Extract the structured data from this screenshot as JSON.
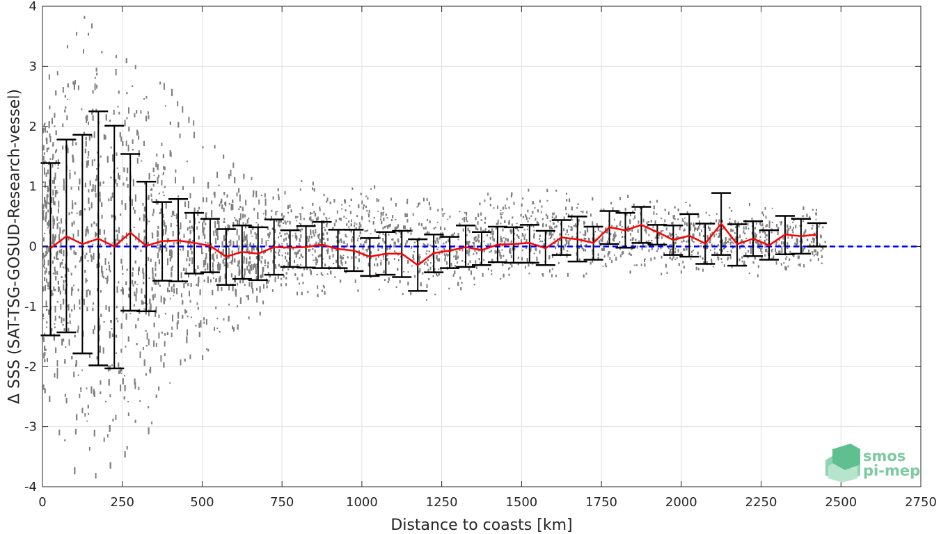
{
  "chart_data": {
    "type": "scatter",
    "xlabel": "Distance to coasts [km]",
    "ylabel": "Δ SSS (SAT-TSG-GOSUD-Research-vessel)",
    "xlim": [
      0,
      2750
    ],
    "ylim": [
      -4,
      4
    ],
    "xticks": [
      0,
      250,
      500,
      750,
      1000,
      1250,
      1500,
      1750,
      2000,
      2250,
      2500,
      2750
    ],
    "yticks": [
      -4,
      -3,
      -2,
      -1,
      0,
      1,
      2,
      3,
      4
    ],
    "grid": true,
    "reference_line": {
      "y": 0,
      "style": "dashed",
      "color": "#0000ff"
    },
    "colors": {
      "scatter": "#808080",
      "mean": "#ff0000",
      "errorbar": "#000000",
      "reference": "#0000ff"
    },
    "binned": {
      "x": [
        25,
        75,
        125,
        175,
        225,
        275,
        325,
        375,
        425,
        475,
        525,
        575,
        625,
        675,
        725,
        775,
        825,
        875,
        925,
        975,
        1025,
        1075,
        1125,
        1175,
        1225,
        1275,
        1325,
        1375,
        1425,
        1475,
        1525,
        1575,
        1625,
        1675,
        1725,
        1775,
        1825,
        1875,
        1925,
        1975,
        2025,
        2075,
        2125,
        2175,
        2225,
        2275,
        2325,
        2375,
        2425
      ],
      "mean": [
        -0.03,
        0.17,
        0.04,
        0.13,
        0.0,
        0.23,
        0.01,
        0.09,
        0.1,
        0.06,
        0.01,
        -0.17,
        -0.09,
        -0.12,
        -0.01,
        -0.02,
        -0.01,
        0.03,
        -0.04,
        -0.07,
        -0.17,
        -0.12,
        -0.12,
        -0.31,
        -0.11,
        -0.07,
        -0.01,
        -0.06,
        0.03,
        0.04,
        0.06,
        -0.03,
        0.15,
        0.12,
        0.06,
        0.32,
        0.27,
        0.36,
        0.24,
        0.11,
        0.18,
        0.05,
        0.38,
        0.04,
        0.13,
        0.02,
        0.2,
        0.17,
        0.2
      ],
      "lower": [
        -1.48,
        -1.43,
        -1.78,
        -1.98,
        -2.03,
        -1.07,
        -1.08,
        -0.57,
        -0.58,
        -0.45,
        -0.43,
        -0.64,
        -0.54,
        -0.56,
        -0.47,
        -0.34,
        -0.35,
        -0.36,
        -0.36,
        -0.41,
        -0.49,
        -0.47,
        -0.51,
        -0.74,
        -0.43,
        -0.36,
        -0.34,
        -0.31,
        -0.26,
        -0.27,
        -0.27,
        -0.31,
        -0.14,
        -0.25,
        -0.22,
        0.04,
        -0.02,
        0.06,
        0.03,
        -0.14,
        -0.17,
        -0.29,
        -0.14,
        -0.32,
        -0.16,
        -0.22,
        -0.13,
        -0.12,
        0.0
      ],
      "upper": [
        1.39,
        1.78,
        1.86,
        2.25,
        2.01,
        1.54,
        1.08,
        0.74,
        0.79,
        0.56,
        0.46,
        0.29,
        0.35,
        0.32,
        0.45,
        0.27,
        0.34,
        0.41,
        0.28,
        0.28,
        0.14,
        0.24,
        0.26,
        0.12,
        0.2,
        0.16,
        0.35,
        0.24,
        0.33,
        0.32,
        0.36,
        0.26,
        0.44,
        0.5,
        0.33,
        0.59,
        0.56,
        0.66,
        0.36,
        0.35,
        0.54,
        0.38,
        0.89,
        0.37,
        0.42,
        0.27,
        0.51,
        0.46,
        0.39
      ]
    },
    "scatter_envelope": {
      "x": [
        0,
        100,
        200,
        300,
        400,
        500,
        600,
        700,
        800,
        900,
        1000,
        1100,
        1200,
        1300,
        1400,
        1500,
        1600,
        1700,
        1800,
        1900,
        2000,
        2100,
        2200,
        2300,
        2400,
        2450
      ],
      "upper": [
        2.6,
        4.0,
        4.0,
        3.2,
        2.6,
        1.9,
        1.4,
        1.2,
        1.1,
        1.0,
        1.0,
        1.0,
        0.8,
        0.85,
        0.9,
        0.95,
        0.95,
        0.9,
        0.85,
        0.8,
        0.75,
        0.75,
        0.7,
        0.7,
        0.65,
        0.6
      ],
      "lower": [
        -2.6,
        -3.9,
        -3.9,
        -3.3,
        -2.6,
        -1.9,
        -1.4,
        -1.1,
        -0.9,
        -0.8,
        -0.75,
        -0.8,
        -0.9,
        -0.75,
        -0.6,
        -0.55,
        -0.55,
        -0.5,
        -0.5,
        -0.5,
        -0.5,
        -0.5,
        -0.5,
        -0.5,
        -0.45,
        -0.4
      ]
    }
  },
  "logo": {
    "line1": "smos",
    "line2": "pi-mep",
    "colors": [
      "#5fbf8f",
      "#8fd4b0",
      "#b7e4cc",
      "#3fa877"
    ]
  }
}
